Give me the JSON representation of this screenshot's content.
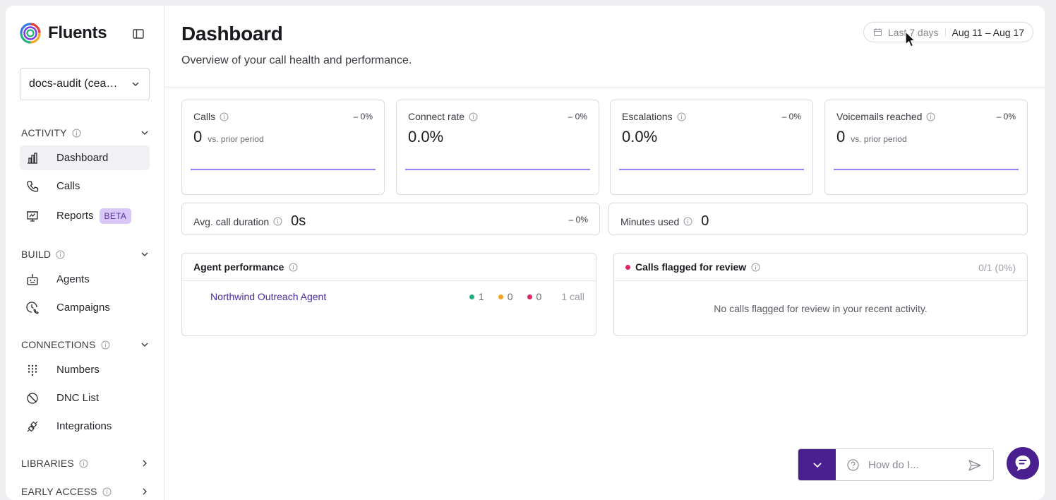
{
  "app": {
    "name": "Fluents"
  },
  "workspace": {
    "label": "docs-audit (cea…"
  },
  "sidebar": {
    "sections": [
      {
        "label": "ACTIVITY",
        "items": [
          {
            "label": "Dashboard",
            "icon": "bar-chart-icon",
            "active": true
          },
          {
            "label": "Calls",
            "icon": "phone-icon"
          },
          {
            "label": "Reports",
            "icon": "presentation-icon",
            "badge": "BETA"
          }
        ]
      },
      {
        "label": "BUILD",
        "items": [
          {
            "label": "Agents",
            "icon": "robot-icon"
          },
          {
            "label": "Campaigns",
            "icon": "clock-phone-icon"
          }
        ]
      },
      {
        "label": "CONNECTIONS",
        "items": [
          {
            "label": "Numbers",
            "icon": "dialpad-icon"
          },
          {
            "label": "DNC List",
            "icon": "ban-icon"
          },
          {
            "label": "Integrations",
            "icon": "plug-icon"
          }
        ]
      },
      {
        "label": "LIBRARIES"
      },
      {
        "label": "EARLY ACCESS"
      }
    ]
  },
  "header": {
    "title": "Dashboard",
    "subtitle": "Overview of your call health and performance.",
    "date_preset": "Last 7 days",
    "date_range": "Aug 11 – Aug 17"
  },
  "metrics": [
    {
      "label": "Calls",
      "value": "0",
      "vs": "vs. prior period",
      "delta": "– 0%"
    },
    {
      "label": "Connect rate",
      "value": "0.0%",
      "vs": "",
      "delta": "– 0%"
    },
    {
      "label": "Escalations",
      "value": "0.0%",
      "vs": "",
      "delta": "– 0%"
    },
    {
      "label": "Voicemails reached",
      "value": "0",
      "vs": "vs. prior period",
      "delta": "– 0%"
    }
  ],
  "wide_metrics": [
    {
      "label": "Avg. call duration",
      "value": "0s",
      "delta": "– 0%"
    },
    {
      "label": "Minutes used",
      "value": "0"
    }
  ],
  "agent_performance": {
    "title": "Agent performance",
    "rows": [
      {
        "name": "Northwind Outreach Agent",
        "green": "1",
        "orange": "0",
        "red": "0",
        "calls": "1 call"
      }
    ]
  },
  "flagged": {
    "title": "Calls flagged for review",
    "count": "0/1 (0%)",
    "empty": "No calls flagged for review in your recent activity."
  },
  "help": {
    "placeholder": "How do I..."
  },
  "colors": {
    "accent": "#4a1f8f",
    "line": "#9b7ff0",
    "green": "#22b07d",
    "orange": "#f5a623",
    "red": "#e0245e"
  }
}
